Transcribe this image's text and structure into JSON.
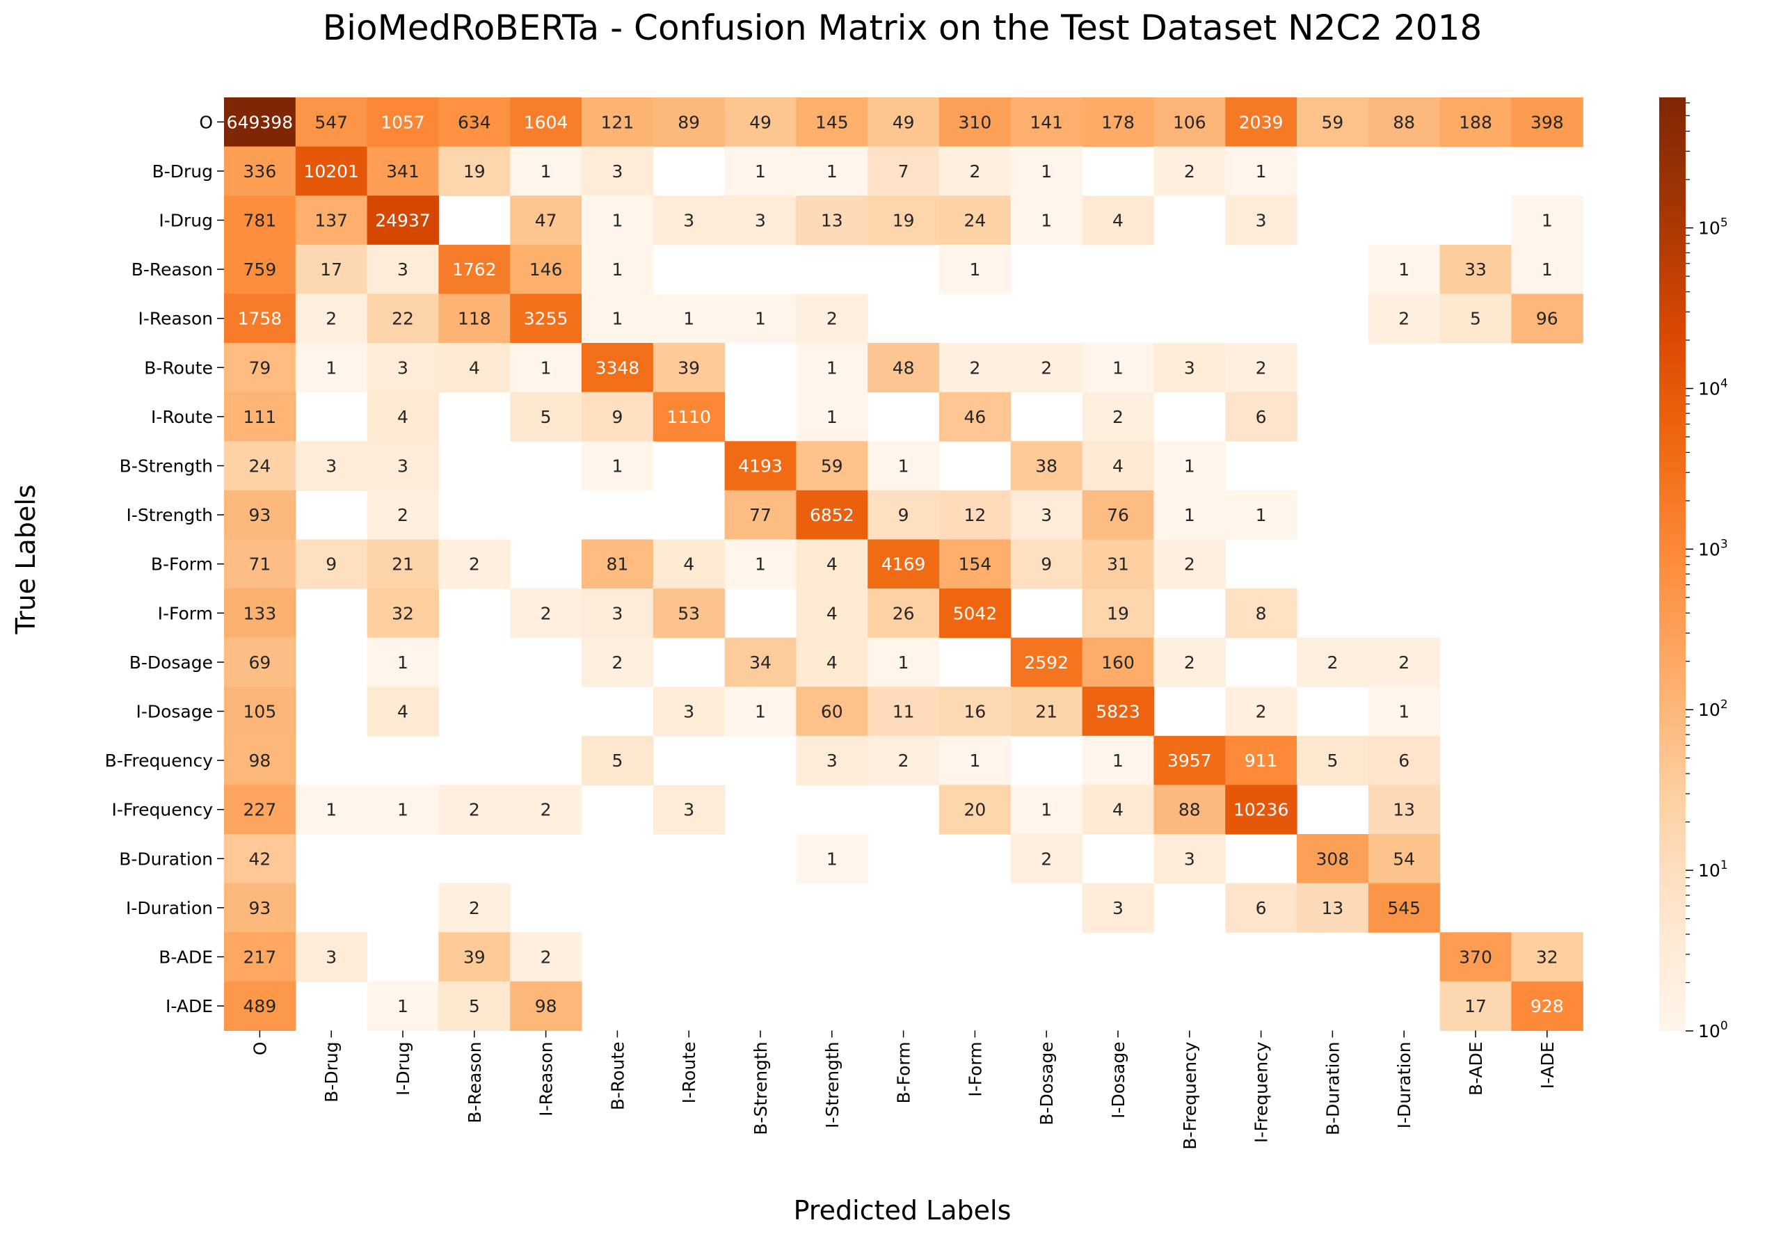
{
  "chart_data": {
    "type": "heatmap",
    "title": "BioMedRoBERTa - Confusion Matrix on the Test Dataset N2C2 2018",
    "xlabel": "Predicted Labels",
    "ylabel": "True Labels",
    "row_labels": [
      "O",
      "B-Drug",
      "I-Drug",
      "B-Reason",
      "I-Reason",
      "B-Route",
      "I-Route",
      "B-Strength",
      "I-Strength",
      "B-Form",
      "I-Form",
      "B-Dosage",
      "I-Dosage",
      "B-Frequency",
      "I-Frequency",
      "B-Duration",
      "I-Duration",
      "B-ADE",
      "I-ADE"
    ],
    "col_labels": [
      "O",
      "B-Drug",
      "I-Drug",
      "B-Reason",
      "I-Reason",
      "B-Route",
      "I-Route",
      "B-Strength",
      "I-Strength",
      "B-Form",
      "I-Form",
      "B-Dosage",
      "I-Dosage",
      "B-Frequency",
      "I-Frequency",
      "B-Duration",
      "I-Duration",
      "B-ADE",
      "I-ADE"
    ],
    "matrix": [
      [
        649398,
        547,
        1057,
        634,
        1604,
        121,
        89,
        49,
        145,
        49,
        310,
        141,
        178,
        106,
        2039,
        59,
        88,
        188,
        398
      ],
      [
        336,
        10201,
        341,
        19,
        1,
        3,
        0,
        1,
        1,
        7,
        2,
        1,
        0,
        2,
        1,
        0,
        0,
        0,
        0
      ],
      [
        781,
        137,
        24937,
        0,
        47,
        1,
        3,
        3,
        13,
        19,
        24,
        1,
        4,
        0,
        3,
        0,
        0,
        0,
        1
      ],
      [
        759,
        17,
        3,
        1762,
        146,
        1,
        0,
        0,
        0,
        0,
        1,
        0,
        0,
        0,
        0,
        0,
        1,
        33,
        1
      ],
      [
        1758,
        2,
        22,
        118,
        3255,
        1,
        1,
        1,
        2,
        0,
        0,
        0,
        0,
        0,
        0,
        0,
        2,
        5,
        96
      ],
      [
        79,
        1,
        3,
        4,
        1,
        3348,
        39,
        0,
        1,
        48,
        2,
        2,
        1,
        3,
        2,
        0,
        0,
        0,
        0
      ],
      [
        111,
        0,
        4,
        0,
        5,
        9,
        1110,
        0,
        1,
        0,
        46,
        0,
        2,
        0,
        6,
        0,
        0,
        0,
        0
      ],
      [
        24,
        3,
        3,
        0,
        0,
        1,
        0,
        4193,
        59,
        1,
        0,
        38,
        4,
        1,
        0,
        0,
        0,
        0,
        0
      ],
      [
        93,
        0,
        2,
        0,
        0,
        0,
        0,
        77,
        6852,
        9,
        12,
        3,
        76,
        1,
        1,
        0,
        0,
        0,
        0
      ],
      [
        71,
        9,
        21,
        2,
        0,
        81,
        4,
        1,
        4,
        4169,
        154,
        9,
        31,
        2,
        0,
        0,
        0,
        0,
        0
      ],
      [
        133,
        0,
        32,
        0,
        2,
        3,
        53,
        0,
        4,
        26,
        5042,
        0,
        19,
        0,
        8,
        0,
        0,
        0,
        0
      ],
      [
        69,
        0,
        1,
        0,
        0,
        2,
        0,
        34,
        4,
        1,
        0,
        2592,
        160,
        2,
        0,
        2,
        2,
        0,
        0
      ],
      [
        105,
        0,
        4,
        0,
        0,
        0,
        3,
        1,
        60,
        11,
        16,
        21,
        5823,
        0,
        2,
        0,
        1,
        0,
        0
      ],
      [
        98,
        0,
        0,
        0,
        0,
        5,
        0,
        0,
        3,
        2,
        1,
        0,
        1,
        3957,
        911,
        5,
        6,
        0,
        0
      ],
      [
        227,
        1,
        1,
        2,
        2,
        0,
        3,
        0,
        0,
        0,
        20,
        1,
        4,
        88,
        10236,
        0,
        13,
        0,
        0
      ],
      [
        42,
        0,
        0,
        0,
        0,
        0,
        0,
        0,
        1,
        0,
        0,
        2,
        0,
        3,
        0,
        308,
        54,
        0,
        0
      ],
      [
        93,
        0,
        0,
        2,
        0,
        0,
        0,
        0,
        0,
        0,
        0,
        0,
        3,
        0,
        6,
        13,
        545,
        0,
        0
      ],
      [
        217,
        3,
        0,
        39,
        2,
        0,
        0,
        0,
        0,
        0,
        0,
        0,
        0,
        0,
        0,
        0,
        0,
        370,
        32
      ],
      [
        489,
        0,
        1,
        5,
        98,
        0,
        0,
        0,
        0,
        0,
        0,
        0,
        0,
        0,
        0,
        0,
        0,
        17,
        928
      ]
    ],
    "zero_cells": "blank",
    "colorscale": "Oranges",
    "color_scale_type": "log",
    "colorbar": {
      "ticks": [
        {
          "value": 1,
          "base": "10",
          "exp": "0"
        },
        {
          "value": 10,
          "base": "10",
          "exp": "1"
        },
        {
          "value": 100,
          "base": "10",
          "exp": "2"
        },
        {
          "value": 1000,
          "base": "10",
          "exp": "3"
        },
        {
          "value": 10000,
          "base": "10",
          "exp": "4"
        },
        {
          "value": 100000,
          "base": "10",
          "exp": "5"
        }
      ],
      "range": [
        1,
        649398
      ]
    },
    "grid": false
  }
}
